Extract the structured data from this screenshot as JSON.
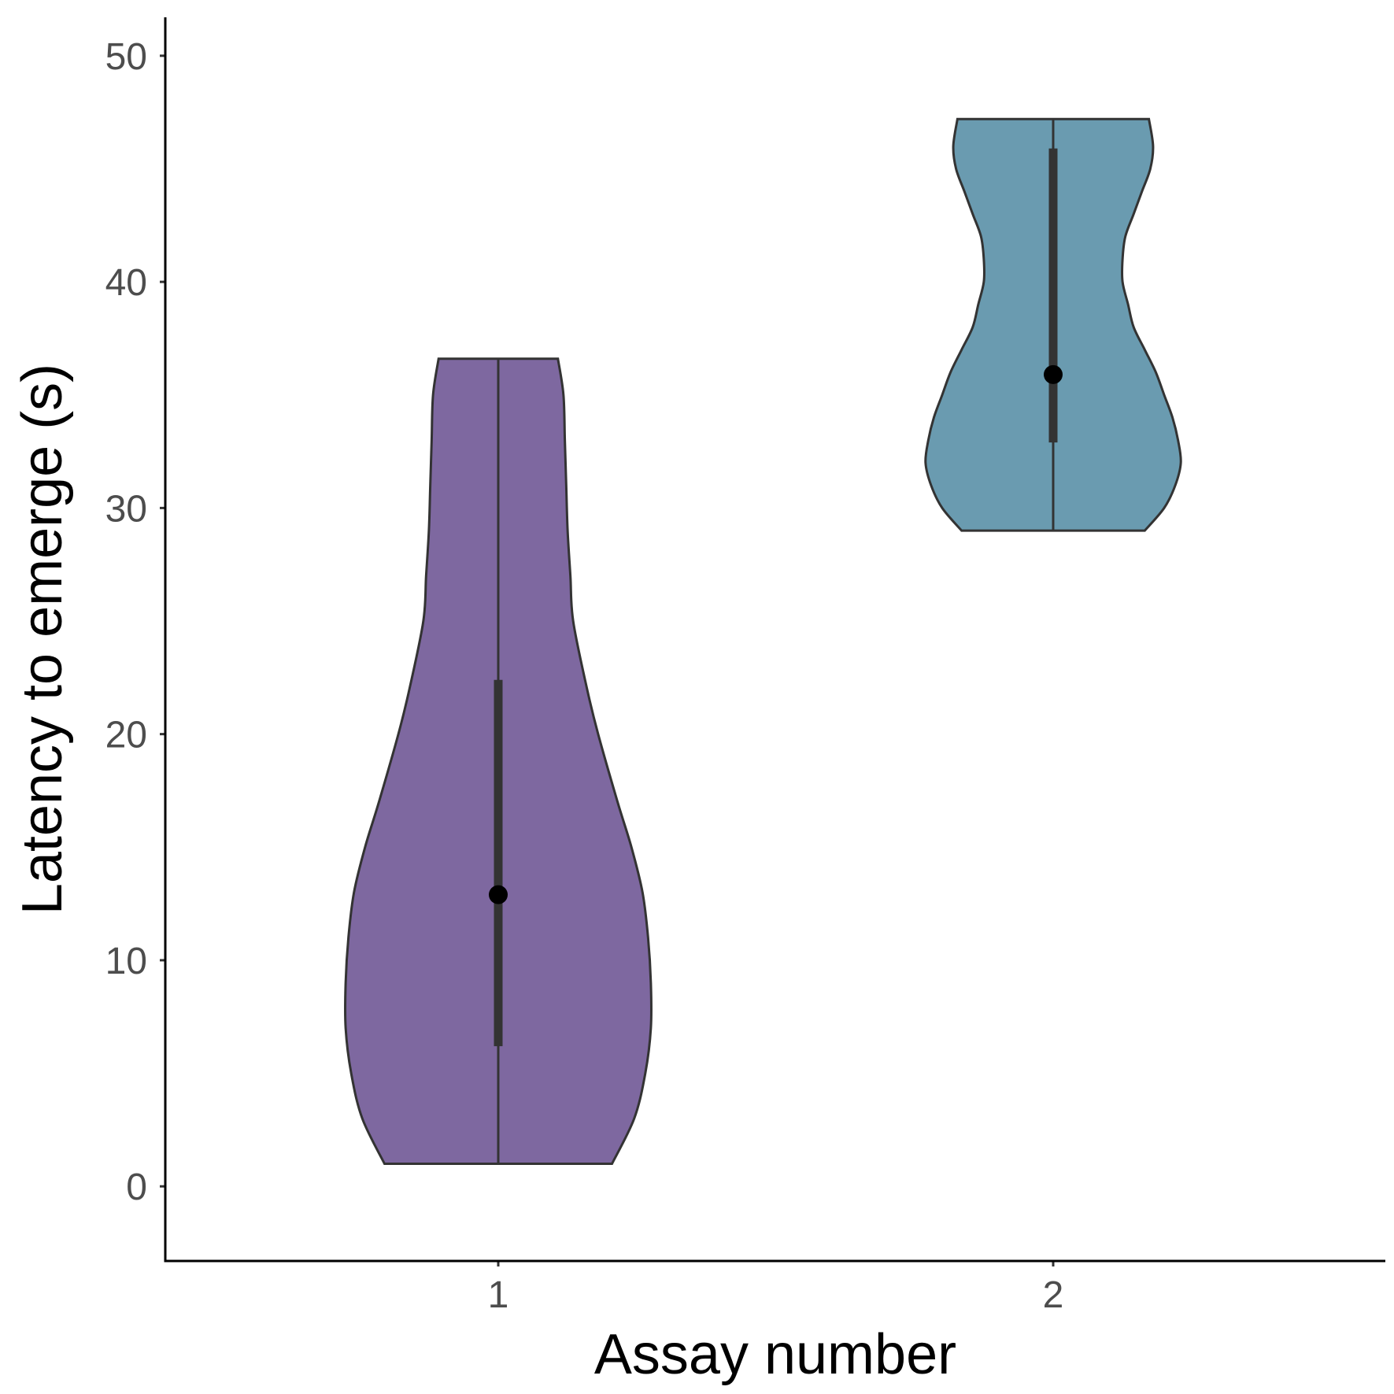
{
  "chart_data": {
    "type": "violin",
    "xlabel": "Assay number",
    "ylabel": "Latency to emerge (s)",
    "categories": [
      "1",
      "2"
    ],
    "ylim": [
      -3.3,
      51.7
    ],
    "yticks": [
      0,
      10,
      20,
      30,
      40,
      50
    ],
    "grid": false,
    "legend": "none",
    "series": [
      {
        "category": "1",
        "color": "#7e68a0",
        "min": 1.0,
        "max": 36.6,
        "q1": 6.2,
        "median": 12.9,
        "q3": 22.4,
        "density": [
          [
            1.0,
            0.41
          ],
          [
            3.0,
            0.49
          ],
          [
            5.0,
            0.53
          ],
          [
            7.0,
            0.55
          ],
          [
            9.0,
            0.55
          ],
          [
            11.0,
            0.54
          ],
          [
            13.0,
            0.52
          ],
          [
            15.0,
            0.48
          ],
          [
            17.0,
            0.43
          ],
          [
            20.0,
            0.36
          ],
          [
            22.0,
            0.32
          ],
          [
            25.0,
            0.27
          ],
          [
            27.0,
            0.26
          ],
          [
            29.0,
            0.25
          ],
          [
            31.0,
            0.245
          ],
          [
            33.0,
            0.24
          ],
          [
            35.0,
            0.235
          ],
          [
            36.6,
            0.215
          ]
        ]
      },
      {
        "category": "2",
        "color": "#6a9bb0",
        "min": 29.0,
        "max": 47.2,
        "q1": 32.9,
        "median": 35.9,
        "q3": 45.9,
        "density": [
          [
            29.0,
            0.33
          ],
          [
            30.0,
            0.4
          ],
          [
            31.0,
            0.44
          ],
          [
            32.0,
            0.46
          ],
          [
            33.0,
            0.45
          ],
          [
            34.0,
            0.43
          ],
          [
            35.0,
            0.4
          ],
          [
            36.0,
            0.37
          ],
          [
            37.0,
            0.33
          ],
          [
            38.0,
            0.29
          ],
          [
            39.0,
            0.27
          ],
          [
            40.0,
            0.25
          ],
          [
            41.0,
            0.25
          ],
          [
            42.0,
            0.26
          ],
          [
            43.0,
            0.29
          ],
          [
            44.0,
            0.32
          ],
          [
            45.0,
            0.35
          ],
          [
            46.0,
            0.36
          ],
          [
            47.2,
            0.345
          ]
        ]
      }
    ]
  }
}
